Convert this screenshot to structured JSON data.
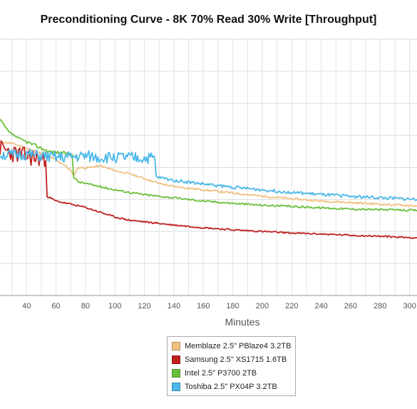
{
  "chart_data": {
    "type": "line",
    "title": "Preconditioning Curve - 8K 70% Read 30% Write [Throughput]",
    "xlabel": "Minutes",
    "ylabel": "",
    "x_ticks": [
      40,
      60,
      80,
      100,
      120,
      140,
      160,
      180,
      200,
      220,
      240,
      260,
      280,
      300
    ],
    "xlim": [
      22,
      305
    ],
    "ylim": [
      0,
      8
    ],
    "grid": true,
    "legend_position": "bottom",
    "series": [
      {
        "name": "Memblaze 2.5\" PBlaze4 3.2TB",
        "color": "#f0c080",
        "points": [
          [
            22,
            4.8
          ],
          [
            30,
            4.75
          ],
          [
            40,
            4.6
          ],
          [
            55,
            4.35
          ],
          [
            65,
            4.1
          ],
          [
            70,
            3.9
          ],
          [
            72,
            3.75
          ],
          [
            75,
            4.0
          ],
          [
            80,
            3.98
          ],
          [
            90,
            4.05
          ],
          [
            100,
            3.9
          ],
          [
            110,
            3.8
          ],
          [
            120,
            3.65
          ],
          [
            130,
            3.5
          ],
          [
            140,
            3.4
          ],
          [
            160,
            3.3
          ],
          [
            180,
            3.2
          ],
          [
            200,
            3.1
          ],
          [
            220,
            3.02
          ],
          [
            240,
            2.95
          ],
          [
            260,
            2.9
          ],
          [
            280,
            2.85
          ],
          [
            305,
            2.8
          ]
        ]
      },
      {
        "name": "Samsung 2.5\" XS1715 1.6TB",
        "color": "#c0201e",
        "points": [
          [
            22,
            4.6
          ],
          [
            30,
            4.45
          ],
          [
            40,
            4.35
          ],
          [
            50,
            4.25
          ],
          [
            53,
            4.2
          ],
          [
            54,
            3.1
          ],
          [
            56,
            3.05
          ],
          [
            60,
            2.95
          ],
          [
            70,
            2.85
          ],
          [
            80,
            2.75
          ],
          [
            90,
            2.6
          ],
          [
            100,
            2.45
          ],
          [
            110,
            2.35
          ],
          [
            120,
            2.3
          ],
          [
            130,
            2.25
          ],
          [
            140,
            2.2
          ],
          [
            160,
            2.12
          ],
          [
            180,
            2.05
          ],
          [
            200,
            2.0
          ],
          [
            220,
            1.95
          ],
          [
            240,
            1.92
          ],
          [
            260,
            1.88
          ],
          [
            280,
            1.85
          ],
          [
            305,
            1.8
          ]
        ]
      },
      {
        "name": "Intel 2.5\" P3700 2TB",
        "color": "#6abf3a",
        "points": [
          [
            22,
            5.5
          ],
          [
            28,
            5.1
          ],
          [
            35,
            4.9
          ],
          [
            45,
            4.7
          ],
          [
            55,
            4.5
          ],
          [
            65,
            4.45
          ],
          [
            71,
            4.4
          ],
          [
            72,
            3.7
          ],
          [
            75,
            3.55
          ],
          [
            80,
            3.5
          ],
          [
            90,
            3.4
          ],
          [
            100,
            3.3
          ],
          [
            110,
            3.22
          ],
          [
            120,
            3.15
          ],
          [
            140,
            3.05
          ],
          [
            160,
            2.95
          ],
          [
            180,
            2.88
          ],
          [
            200,
            2.82
          ],
          [
            220,
            2.78
          ],
          [
            240,
            2.74
          ],
          [
            260,
            2.7
          ],
          [
            280,
            2.68
          ],
          [
            305,
            2.66
          ]
        ]
      },
      {
        "name": "Toshiba 2.5\" PX04P 3.2TB",
        "color": "#4ab8e8",
        "points": [
          [
            22,
            4.4
          ],
          [
            30,
            4.38
          ],
          [
            40,
            4.4
          ],
          [
            50,
            4.35
          ],
          [
            60,
            4.3
          ],
          [
            70,
            4.32
          ],
          [
            80,
            4.35
          ],
          [
            90,
            4.3
          ],
          [
            100,
            4.32
          ],
          [
            110,
            4.3
          ],
          [
            120,
            4.28
          ],
          [
            127,
            4.3
          ],
          [
            128,
            3.7
          ],
          [
            140,
            3.6
          ],
          [
            160,
            3.48
          ],
          [
            180,
            3.38
          ],
          [
            200,
            3.3
          ],
          [
            220,
            3.22
          ],
          [
            240,
            3.15
          ],
          [
            260,
            3.1
          ],
          [
            280,
            3.05
          ],
          [
            305,
            3.0
          ]
        ]
      }
    ]
  }
}
